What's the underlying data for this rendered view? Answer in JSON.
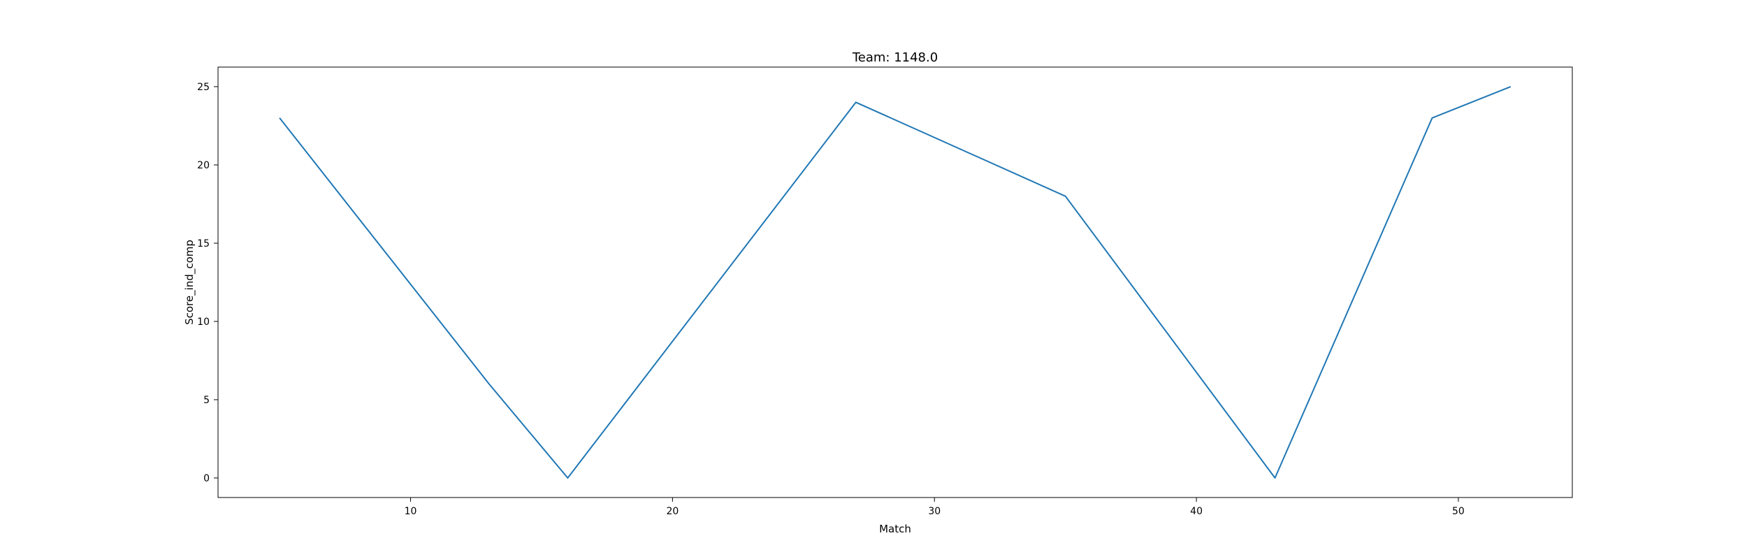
{
  "chart_data": {
    "type": "line",
    "title": "Team: 1148.0",
    "xlabel": "Match",
    "ylabel": "Score_ind_comp",
    "xlim": [
      2.65,
      54.35
    ],
    "ylim": [
      -1.25,
      26.25
    ],
    "xticks": [
      10,
      20,
      30,
      40,
      50
    ],
    "yticks": [
      0,
      5,
      10,
      15,
      20,
      25
    ],
    "grid": false,
    "series": [
      {
        "color": "#1f77b4",
        "x": [
          5,
          13,
          16,
          27,
          35,
          43,
          49,
          52
        ],
        "y": [
          23,
          6,
          0,
          24,
          18,
          0,
          23,
          25
        ]
      }
    ]
  }
}
